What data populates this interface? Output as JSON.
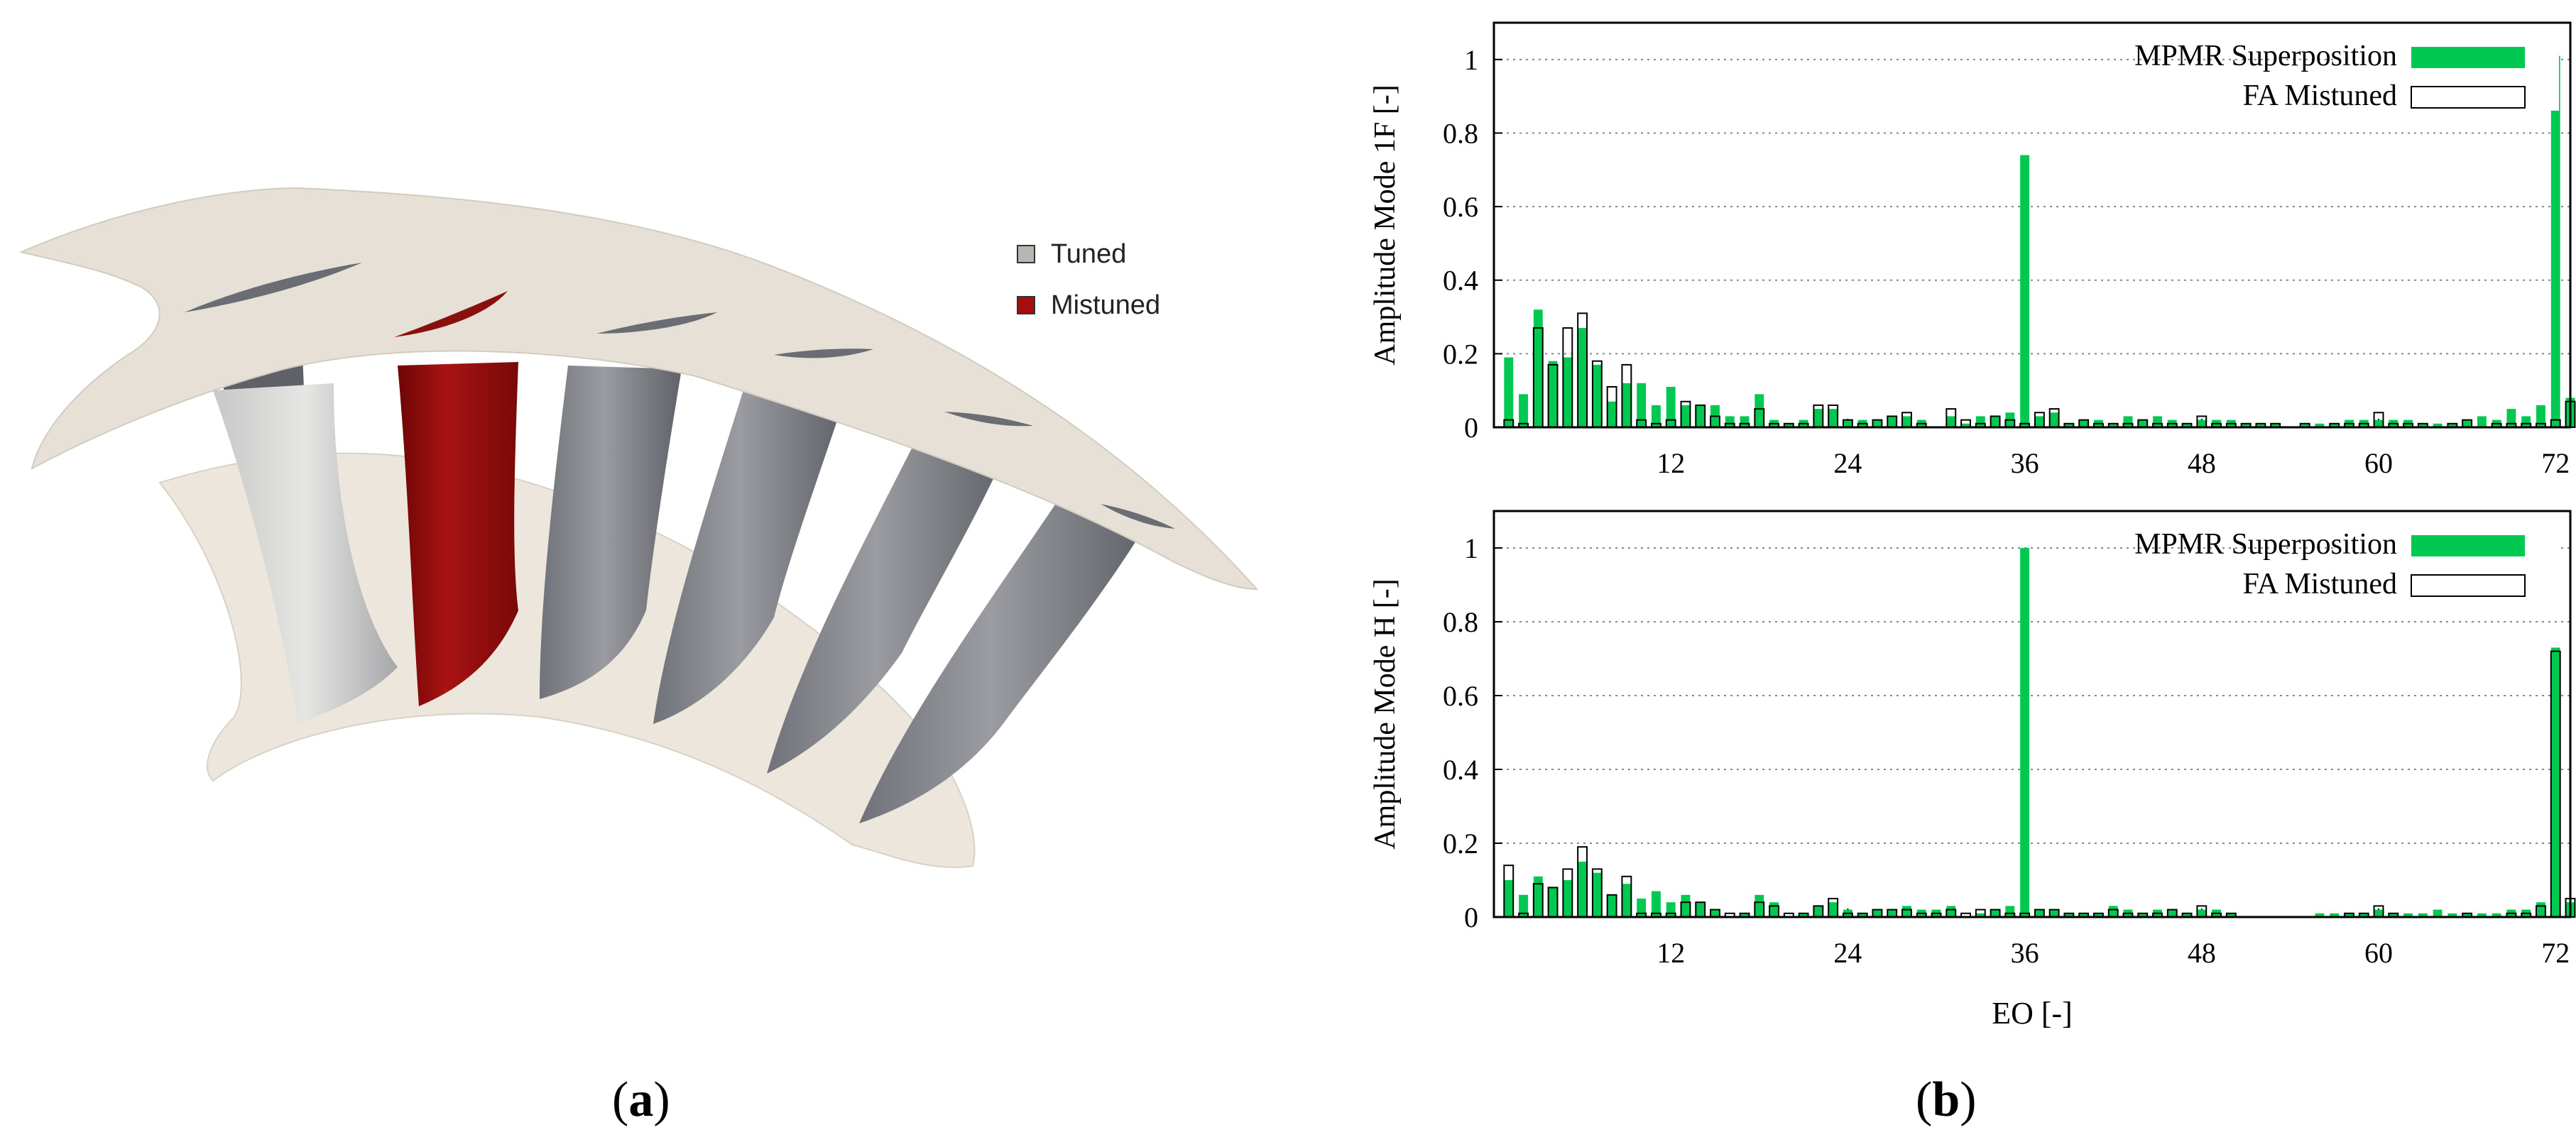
{
  "panel_a": {
    "caption": "a",
    "legend": [
      {
        "label": "Tuned",
        "color": "#b9b6b1"
      },
      {
        "label": "Mistuned",
        "color": "#a50e0e"
      }
    ],
    "colors": {
      "shroud": "#e6e0d6",
      "hub": "#ece6dc",
      "blade_tuned": "#8a8c92",
      "blade_mistuned": "#9c0f0f"
    }
  },
  "panel_b": {
    "caption": "b",
    "xlabel": "EO [-]",
    "legend": {
      "superposition": "MPMR Superposition",
      "fa": "FA Mistuned"
    },
    "colors": {
      "superposition": "#00c850",
      "fa_edge": "#000000"
    }
  },
  "chart_data": [
    {
      "type": "bar",
      "ylabel": "Amplitude Mode 1F [-]",
      "xlabel": "",
      "x_ticks": [
        12,
        24,
        36,
        48,
        60,
        72
      ],
      "y_ticks": [
        "0",
        "0.2",
        "0.4",
        "0.6",
        "0.8",
        "1"
      ],
      "xlim": [
        0,
        73
      ],
      "ylim": [
        0,
        1.1
      ],
      "grid": "horizontal dotted",
      "legend_position": "top-right",
      "categories": [
        1,
        2,
        3,
        4,
        5,
        6,
        7,
        8,
        9,
        10,
        11,
        12,
        13,
        14,
        15,
        16,
        17,
        18,
        19,
        20,
        21,
        22,
        23,
        24,
        25,
        26,
        27,
        28,
        29,
        30,
        31,
        32,
        33,
        34,
        35,
        36,
        37,
        38,
        39,
        40,
        41,
        42,
        43,
        44,
        45,
        46,
        47,
        48,
        49,
        50,
        51,
        52,
        53,
        54,
        55,
        56,
        57,
        58,
        59,
        60,
        61,
        62,
        63,
        64,
        65,
        66,
        67,
        68,
        69,
        70,
        71,
        72,
        73
      ],
      "series": [
        {
          "name": "MPMR Superposition",
          "values": [
            0.19,
            0.09,
            0.32,
            0.18,
            0.19,
            0.27,
            0.17,
            0.07,
            0.12,
            0.12,
            0.06,
            0.11,
            0.06,
            0.06,
            0.06,
            0.03,
            0.03,
            0.09,
            0.02,
            0.01,
            0.02,
            0.05,
            0.05,
            0.02,
            0.02,
            0.02,
            0.03,
            0.03,
            0.02,
            0.0,
            0.03,
            0.01,
            0.03,
            0.03,
            0.04,
            0.74,
            0.03,
            0.04,
            0.01,
            0.02,
            0.02,
            0.01,
            0.03,
            0.02,
            0.03,
            0.02,
            0.01,
            0.02,
            0.02,
            0.02,
            0.01,
            0.01,
            0.01,
            0.0,
            0.01,
            0.01,
            0.01,
            0.02,
            0.02,
            0.02,
            0.02,
            0.02,
            0.01,
            0.01,
            0.01,
            0.02,
            0.03,
            0.02,
            0.05,
            0.03,
            0.06,
            1.01,
            0.08
          ]
        },
        {
          "name": "FA Mistuned",
          "values": [
            0.02,
            0.01,
            0.27,
            0.17,
            0.27,
            0.31,
            0.18,
            0.11,
            0.17,
            0.02,
            0.01,
            0.02,
            0.07,
            0.06,
            0.03,
            0.01,
            0.01,
            0.05,
            0.01,
            0.01,
            0.01,
            0.06,
            0.06,
            0.02,
            0.01,
            0.02,
            0.03,
            0.04,
            0.01,
            0.0,
            0.05,
            0.02,
            0.01,
            0.03,
            0.02,
            0.01,
            0.04,
            0.05,
            0.01,
            0.02,
            0.01,
            0.01,
            0.01,
            0.02,
            0.01,
            0.01,
            0.01,
            0.03,
            0.01,
            0.01,
            0.01,
            0.01,
            0.01,
            0.0,
            0.01,
            0.0,
            0.01,
            0.01,
            0.01,
            0.04,
            0.01,
            0.01,
            0.01,
            0.0,
            0.01,
            0.02,
            0.0,
            0.01,
            0.01,
            0.01,
            0.01,
            0.02,
            0.07
          ]
        }
      ]
    },
    {
      "type": "bar",
      "ylabel": "Amplitude Mode H [-]",
      "xlabel": "EO [-]",
      "x_ticks": [
        12,
        24,
        36,
        48,
        60,
        72
      ],
      "y_ticks": [
        "0",
        "0.2",
        "0.4",
        "0.6",
        "0.8",
        "1"
      ],
      "xlim": [
        0,
        73
      ],
      "ylim": [
        0,
        1.1
      ],
      "grid": "horizontal dotted",
      "legend_position": "top-right",
      "categories": [
        1,
        2,
        3,
        4,
        5,
        6,
        7,
        8,
        9,
        10,
        11,
        12,
        13,
        14,
        15,
        16,
        17,
        18,
        19,
        20,
        21,
        22,
        23,
        24,
        25,
        26,
        27,
        28,
        29,
        30,
        31,
        32,
        33,
        34,
        35,
        36,
        37,
        38,
        39,
        40,
        41,
        42,
        43,
        44,
        45,
        46,
        47,
        48,
        49,
        50,
        51,
        52,
        53,
        54,
        55,
        56,
        57,
        58,
        59,
        60,
        61,
        62,
        63,
        64,
        65,
        66,
        67,
        68,
        69,
        70,
        71,
        72,
        73
      ],
      "series": [
        {
          "name": "MPMR Superposition",
          "values": [
            0.1,
            0.06,
            0.11,
            0.08,
            0.1,
            0.15,
            0.12,
            0.06,
            0.09,
            0.05,
            0.07,
            0.04,
            0.06,
            0.04,
            0.02,
            0.0,
            0.01,
            0.06,
            0.04,
            0.0,
            0.01,
            0.03,
            0.04,
            0.02,
            0.01,
            0.02,
            0.02,
            0.03,
            0.02,
            0.02,
            0.03,
            0.0,
            0.01,
            0.02,
            0.03,
            1.0,
            0.02,
            0.02,
            0.01,
            0.01,
            0.01,
            0.03,
            0.02,
            0.01,
            0.02,
            0.02,
            0.01,
            0.02,
            0.02,
            0.01,
            0.0,
            0.0,
            0.0,
            0.0,
            0.0,
            0.01,
            0.01,
            0.01,
            0.01,
            0.02,
            0.01,
            0.01,
            0.01,
            0.02,
            0.01,
            0.01,
            0.01,
            0.01,
            0.02,
            0.02,
            0.04,
            0.73,
            0.04
          ]
        },
        {
          "name": "FA Mistuned",
          "values": [
            0.14,
            0.01,
            0.09,
            0.08,
            0.13,
            0.19,
            0.13,
            0.06,
            0.11,
            0.01,
            0.01,
            0.01,
            0.04,
            0.04,
            0.02,
            0.01,
            0.01,
            0.04,
            0.03,
            0.01,
            0.01,
            0.03,
            0.05,
            0.01,
            0.01,
            0.02,
            0.02,
            0.02,
            0.01,
            0.01,
            0.02,
            0.01,
            0.02,
            0.02,
            0.01,
            0.01,
            0.02,
            0.02,
            0.01,
            0.01,
            0.01,
            0.02,
            0.01,
            0.01,
            0.01,
            0.02,
            0.01,
            0.03,
            0.01,
            0.01,
            0.0,
            0.0,
            0.0,
            0.0,
            0.0,
            0.0,
            0.0,
            0.01,
            0.01,
            0.03,
            0.01,
            0.0,
            0.0,
            0.0,
            0.0,
            0.01,
            0.0,
            0.0,
            0.01,
            0.01,
            0.03,
            0.72,
            0.05
          ]
        }
      ]
    }
  ]
}
